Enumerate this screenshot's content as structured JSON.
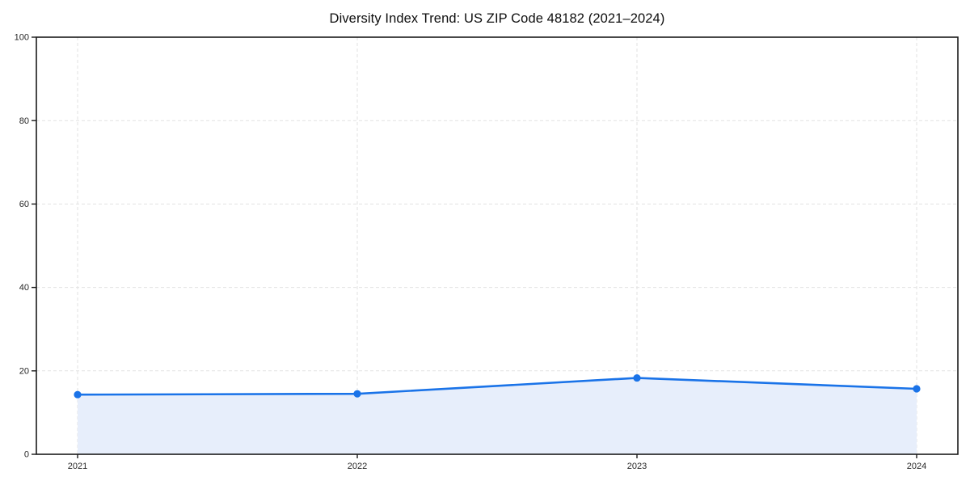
{
  "chart_data": {
    "type": "area",
    "title": "Diversity Index Trend: US ZIP Code 48182 (2021–2024)",
    "xlabel": "",
    "ylabel": "",
    "categories": [
      "2021",
      "2022",
      "2023",
      "2024"
    ],
    "series": [
      {
        "name": "Diversity Index",
        "values": [
          14.3,
          14.5,
          18.3,
          15.7
        ]
      }
    ],
    "ylim": [
      0,
      100
    ],
    "y_ticks": [
      0,
      20,
      40,
      60,
      80,
      100
    ],
    "grid": true,
    "grid_style": "dashed",
    "legend_position": "none",
    "colors": {
      "line": "#1a73e8",
      "marker": "#1a73e8",
      "fill": "#e7eefb",
      "grid": "#e2e2e2",
      "axis": "#1a1a1a",
      "tick_label": "#262626",
      "title": "#0d0d0d",
      "background": "#ffffff"
    }
  }
}
